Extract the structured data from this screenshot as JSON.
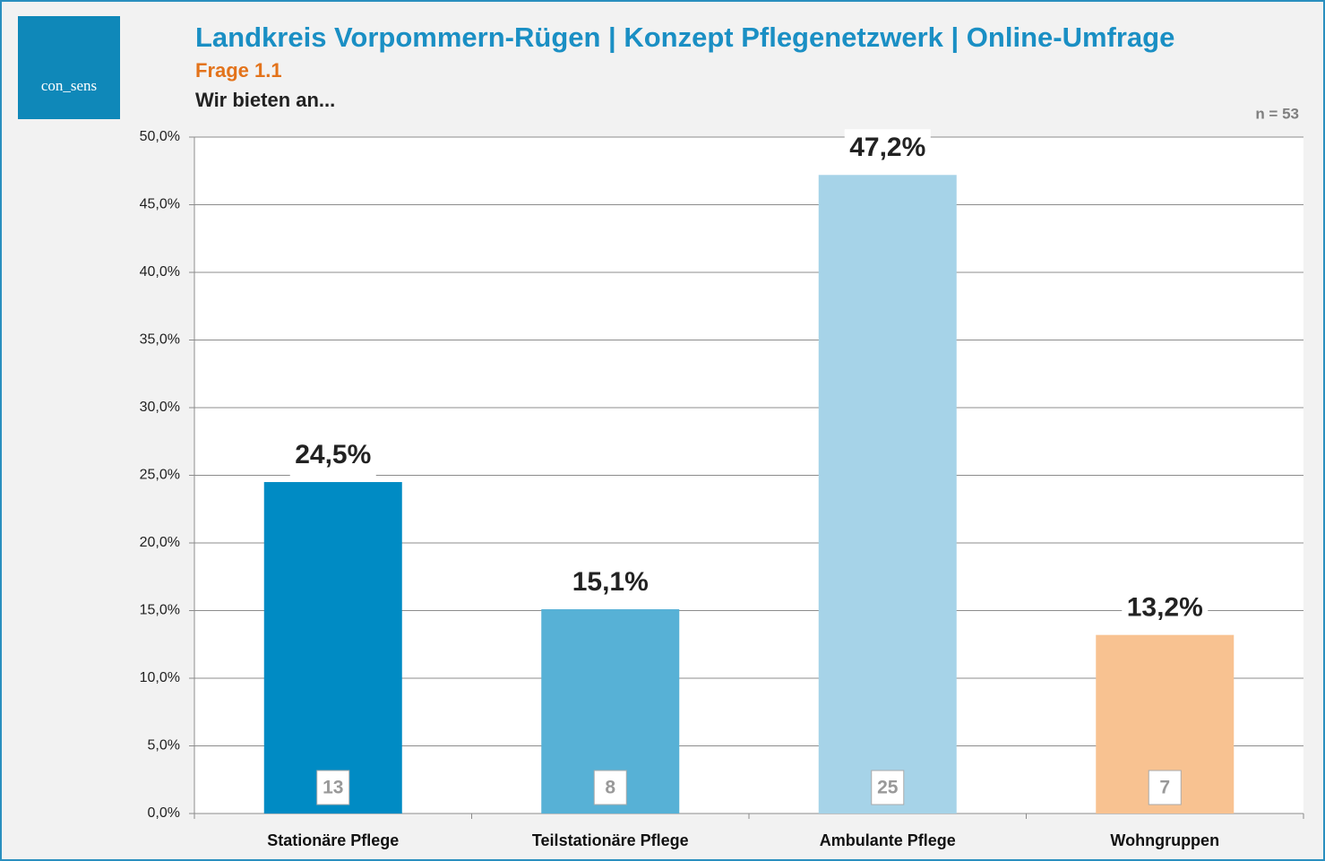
{
  "logo": "con_sens",
  "chart_data": {
    "type": "bar",
    "title": "Landkreis Vorpommern-Rügen | Konzept Pflegenetzwerk | Online-Umfrage",
    "subtitle": "Frage 1.1",
    "question": "Wir bieten an...",
    "sample_size": "n = 53",
    "categories": [
      "Stationäre Pflege",
      "Teilstationäre Pflege",
      "Ambulante Pflege",
      "Wohngruppen"
    ],
    "values": [
      24.5,
      15.1,
      47.2,
      13.2
    ],
    "value_labels": [
      "24,5%",
      "15,1%",
      "47,2%",
      "13,2%"
    ],
    "counts": [
      13,
      8,
      25,
      7
    ],
    "colors": [
      "#008bc4",
      "#57b1d6",
      "#a6d3e8",
      "#f8c291"
    ],
    "ylim": [
      0,
      50
    ],
    "yticks": [
      {
        "value": 0,
        "label": "0,0%"
      },
      {
        "value": 5,
        "label": "5,0%"
      },
      {
        "value": 10,
        "label": "10,0%"
      },
      {
        "value": 15,
        "label": "15,0%"
      },
      {
        "value": 20,
        "label": "20,0%"
      },
      {
        "value": 25,
        "label": "25,0%"
      },
      {
        "value": 30,
        "label": "30,0%"
      },
      {
        "value": 35,
        "label": "35,0%"
      },
      {
        "value": 40,
        "label": "40,0%"
      },
      {
        "value": 45,
        "label": "45,0%"
      },
      {
        "value": 50,
        "label": "50,0%"
      }
    ],
    "grid": true
  }
}
